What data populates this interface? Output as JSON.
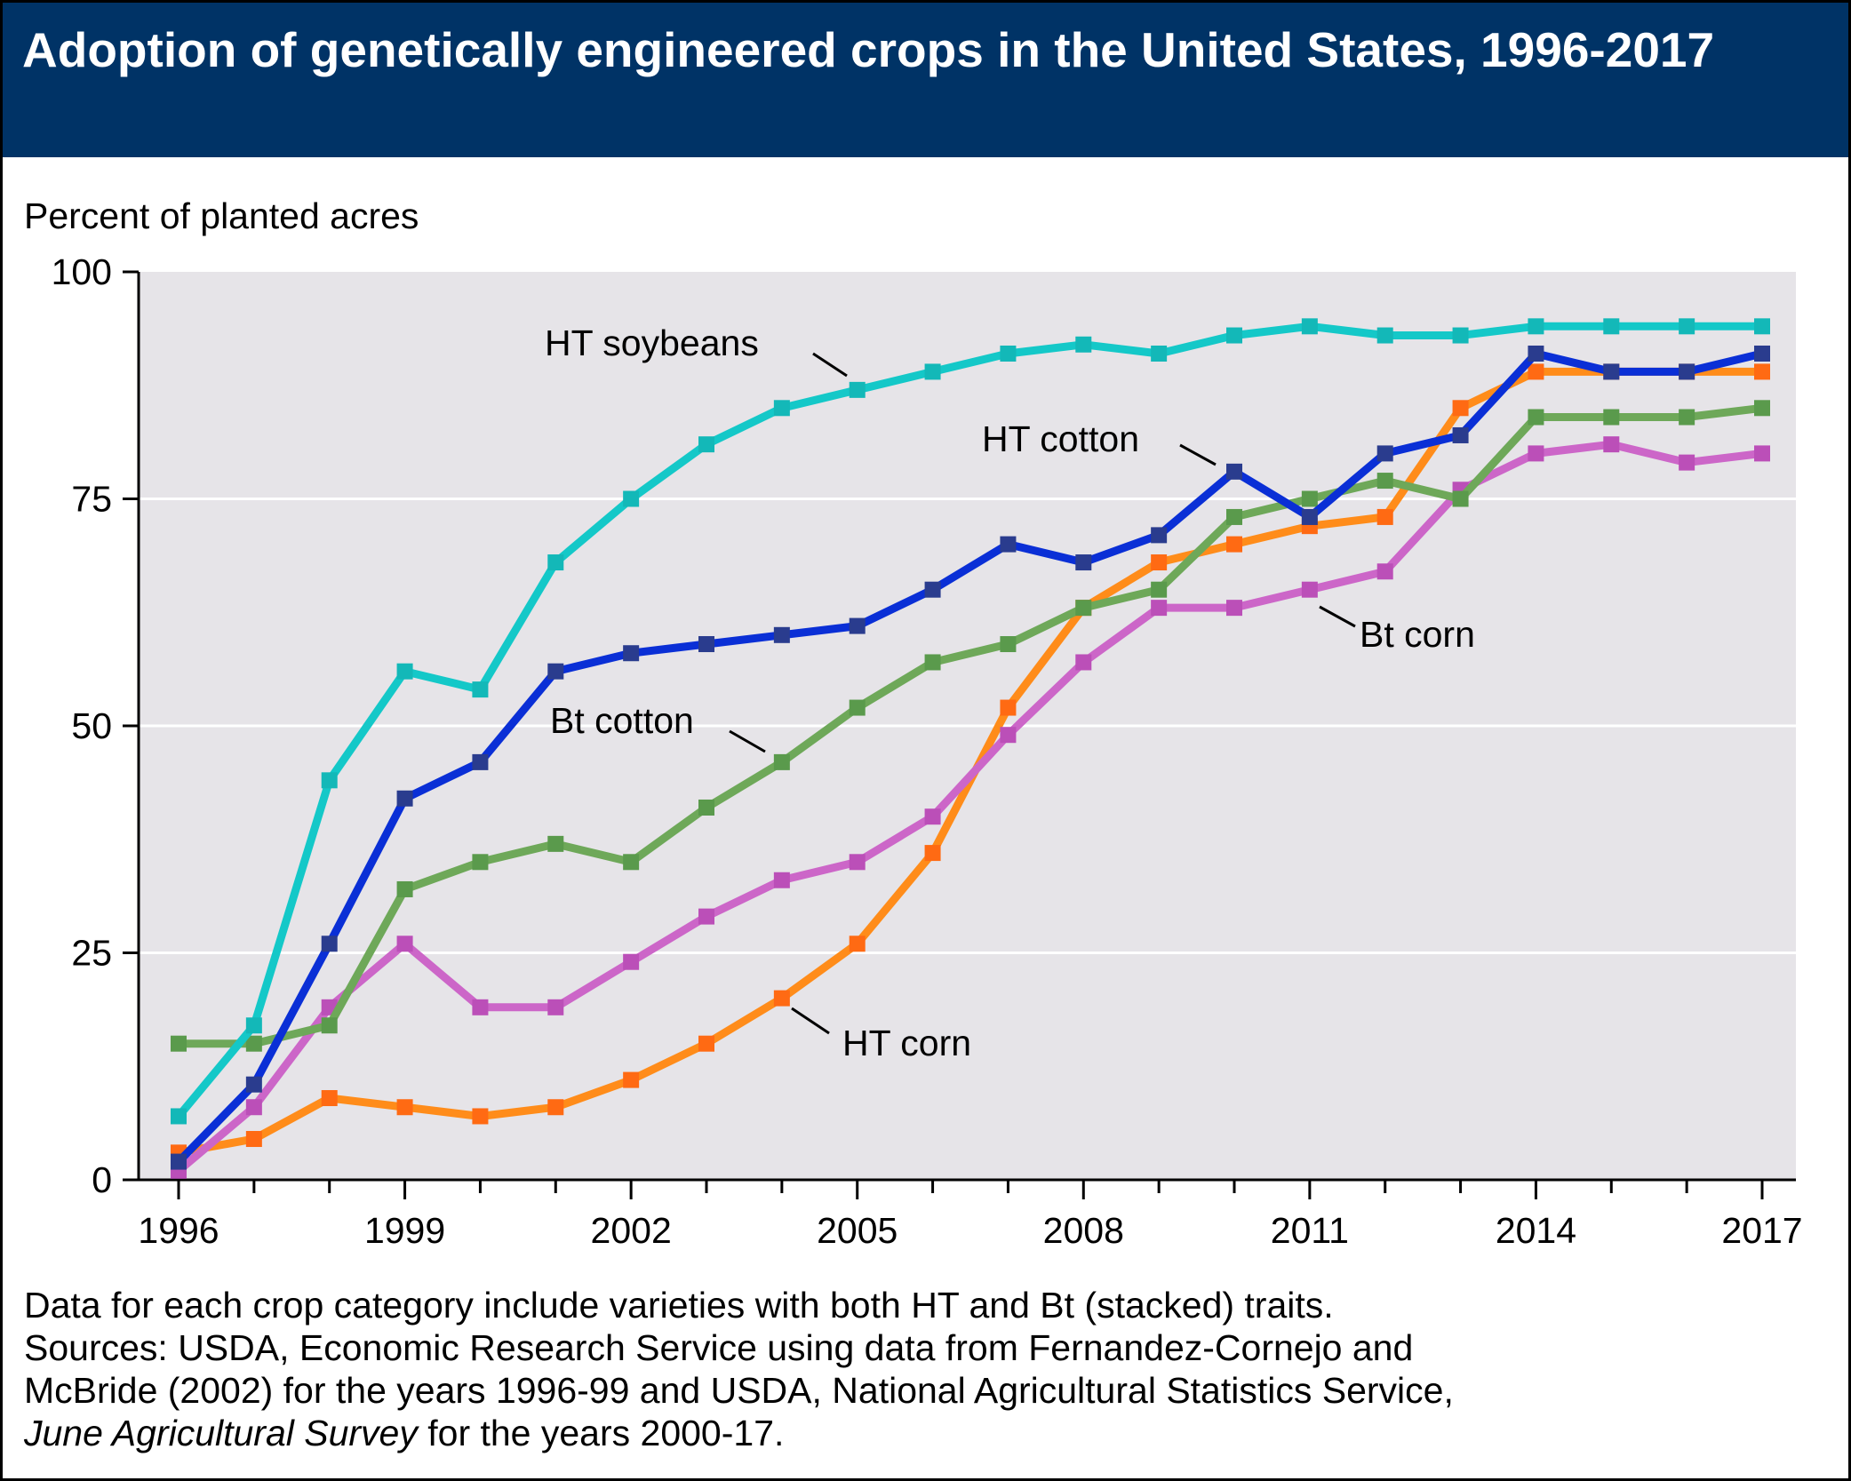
{
  "chart_data": {
    "type": "line",
    "title": "Adoption of genetically engineered crops in the United States, 1996-2017",
    "ylabel": "Percent of planted acres",
    "xlabel": "",
    "ylim": [
      0,
      100
    ],
    "yticks": [
      0,
      25,
      50,
      75,
      100
    ],
    "xlim": [
      1996,
      2017
    ],
    "xticks": [
      1996,
      1999,
      2002,
      2005,
      2008,
      2011,
      2014,
      2017
    ],
    "grid": "horizontal",
    "x": [
      1996,
      1997,
      1998,
      1999,
      2000,
      2001,
      2002,
      2003,
      2004,
      2005,
      2006,
      2007,
      2008,
      2009,
      2010,
      2011,
      2012,
      2013,
      2014,
      2015,
      2016,
      2017
    ],
    "series": [
      {
        "name": "HT corn",
        "color": "#ff8c1a",
        "marker_color": "#ff6a13",
        "values": [
          3,
          4.5,
          9,
          8,
          7,
          8,
          11,
          15,
          20,
          26,
          36,
          52,
          63,
          68,
          70,
          72,
          73,
          85,
          89,
          89,
          89,
          89
        ]
      },
      {
        "name": "Bt corn",
        "color": "#cc66c8",
        "marker_color": "#bb4fb8",
        "values": [
          1,
          8,
          19,
          26,
          19,
          19,
          24,
          29,
          33,
          35,
          40,
          49,
          57,
          63,
          63,
          65,
          67,
          76,
          80,
          81,
          79,
          80
        ]
      },
      {
        "name": "Bt cotton",
        "color": "#6ea859",
        "marker_color": "#5a9a4c",
        "values": [
          15,
          15,
          17,
          32,
          35,
          37,
          35,
          41,
          46,
          52,
          57,
          59,
          63,
          65,
          73,
          75,
          77,
          75,
          84,
          84,
          84,
          85
        ]
      },
      {
        "name": "HT cotton",
        "color": "#0a2fd6",
        "marker_color": "#2a3c8e",
        "values": [
          2,
          10.5,
          26,
          42,
          46,
          56,
          58,
          59,
          60,
          61,
          65,
          70,
          68,
          71,
          78,
          73,
          80,
          82,
          91,
          89,
          89,
          91
        ]
      },
      {
        "name": "HT soybeans",
        "color": "#14c8c8",
        "marker_color": "#13b8b8",
        "values": [
          7,
          17,
          44,
          56,
          54,
          68,
          75,
          81,
          85,
          87,
          89,
          91,
          92,
          91,
          93,
          94,
          93,
          93,
          94,
          94,
          94,
          94
        ]
      }
    ],
    "annotations": [
      {
        "text": "HT soybeans",
        "series": "HT soybeans",
        "x": 2005
      },
      {
        "text": "HT cotton",
        "series": "HT cotton",
        "x": 2010
      },
      {
        "text": "Bt cotton",
        "series": "Bt cotton",
        "x": 2004
      },
      {
        "text": "Bt corn",
        "series": "Bt corn",
        "x": 2011
      },
      {
        "text": "HT corn",
        "series": "HT corn",
        "x": 2004
      }
    ]
  },
  "notes": {
    "line1": "Data for each crop category include varieties with both HT and Bt (stacked) traits.",
    "line2": "Sources: USDA, Economic Research Service using data from Fernandez-Cornejo and",
    "line3": "McBride (2002) for the years 1996-99 and USDA, National Agricultural Statistics Service,",
    "line4_italic": "June Agricultural Survey",
    "line4_rest": " for the years 2000-17."
  },
  "colors": {
    "banner": "#003366",
    "plot_background": "#e6e4e8",
    "gridline": "#ffffff",
    "axis": "#000000"
  }
}
